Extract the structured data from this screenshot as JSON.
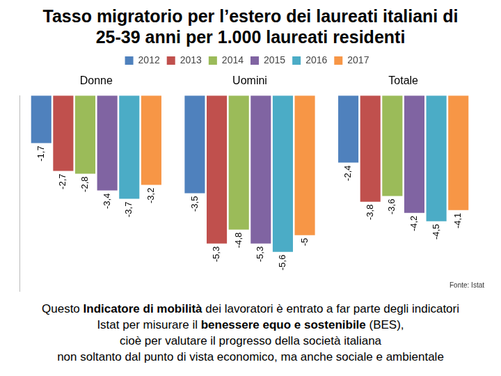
{
  "chart_data": {
    "type": "bar",
    "title": "Tasso migratorio per l’estero dei laureati italiani di 25-39 anni per 1.000 laureati residenti",
    "categories": [
      "Donne",
      "Uomini",
      "Totale"
    ],
    "series": [
      {
        "name": "2012",
        "color": "#4f81bd",
        "values": [
          -1.7,
          -3.5,
          -2.4
        ],
        "value_labels": [
          "-1,7",
          "-3,5",
          "-2,4"
        ]
      },
      {
        "name": "2013",
        "color": "#c0504d",
        "values": [
          -2.7,
          -5.3,
          -3.8
        ],
        "value_labels": [
          "-2,7",
          "-5,3",
          "-3,8"
        ]
      },
      {
        "name": "2014",
        "color": "#9bbb59",
        "values": [
          -2.8,
          -4.8,
          -3.6
        ],
        "value_labels": [
          "-2,8",
          "-4,8",
          "-3,6"
        ]
      },
      {
        "name": "2015",
        "color": "#8064a2",
        "values": [
          -3.4,
          -5.3,
          -4.2
        ],
        "value_labels": [
          "-3,4",
          "-5,3",
          "-4,2"
        ]
      },
      {
        "name": "2016",
        "color": "#4bacc6",
        "values": [
          -3.7,
          -5.6,
          -4.5
        ],
        "value_labels": [
          "-3,7",
          "-5,6",
          "-4,5"
        ]
      },
      {
        "name": "2017",
        "color": "#f79646",
        "values": [
          -3.2,
          -5,
          -4.1
        ],
        "value_labels": [
          "-3,2",
          "-5",
          "-4,1"
        ]
      }
    ],
    "ylim": [
      -7,
      0
    ],
    "grid": false,
    "legend": "top",
    "data_labels": true,
    "tick_labels": "x",
    "source": "Fonte: Istat",
    "note": [
      [
        {
          "text": "Questo "
        },
        {
          "text": "Indicatore di mobilità",
          "bold": true
        },
        {
          "text": " dei lavoratori è entrato a far parte degli indicatori"
        }
      ],
      [
        {
          "text": "Istat per misurare il "
        },
        {
          "text": "benessere equo e sostenibile",
          "bold": true
        },
        {
          "text": " (BES),"
        }
      ],
      [
        {
          "text": "cioè per valutare il progresso della società italiana"
        }
      ],
      [
        {
          "text": "non soltanto dal punto di vista economico, ma anche sociale e ambientale"
        }
      ]
    ]
  }
}
